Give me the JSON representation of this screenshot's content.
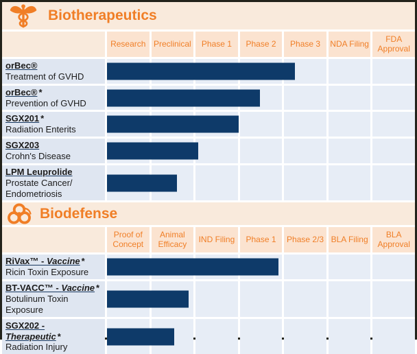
{
  "colors": {
    "accent_orange": "#F07E26",
    "bar_navy": "#0E3A69",
    "section_band_bg": "#F9EADC",
    "header_cell_bg": "#FBE3D0",
    "label_cell_bg": "#DFE6F1",
    "grid_cell_bg": "#E7EDF6",
    "border_dark": "#23231B",
    "grid_line_white": "#FFFFFF"
  },
  "sections": [
    {
      "title": "Biotherapeutics",
      "icon": "caduceus-icon",
      "columns": [
        "Research",
        "Preclinical",
        "Phase 1",
        "Phase 2",
        "Phase 3",
        "NDA Filing",
        "FDA Approval"
      ],
      "rows": [
        {
          "name_main": "orBec®",
          "name_italic": "",
          "asterisk": "",
          "indication": "Treatment of GVHD",
          "bar_pct": 61.0,
          "phase_reached": "Phase 3"
        },
        {
          "name_main": "orBec®",
          "name_italic": "",
          "asterisk": "*",
          "indication": "Prevention of GVHD",
          "bar_pct": 49.7,
          "phase_reached": "Phase 2"
        },
        {
          "name_main": "SGX201",
          "name_italic": "",
          "asterisk": "*",
          "indication": "Radiation Enterits",
          "bar_pct": 42.8,
          "phase_reached": "Phase 1"
        },
        {
          "name_main": "SGX203",
          "name_italic": "",
          "asterisk": "",
          "indication": "Crohn's Disease",
          "bar_pct": 29.6,
          "phase_reached": "Preclinical"
        },
        {
          "name_main": "LPM Leuprolide",
          "name_italic": "",
          "asterisk": "",
          "indication": "Prostate Cancer/ Endometriosis",
          "bar_pct": 22.7,
          "phase_reached": "Preclinical"
        }
      ]
    },
    {
      "title": "Biodefense",
      "icon": "biohazard-icon",
      "columns": [
        "Proof of Concept",
        "Animal Efficacy",
        "IND Filing",
        "Phase 1",
        "Phase 2/3",
        "BLA Filing",
        "BLA Approval"
      ],
      "rows": [
        {
          "name_main": "RiVax™ - ",
          "name_italic": "Vaccine",
          "asterisk": "*",
          "indication": "Ricin Toxin Exposure",
          "bar_pct": 55.7,
          "phase_reached": "Phase 1"
        },
        {
          "name_main": "BT-VACC™ - ",
          "name_italic": "Vaccine",
          "asterisk": "*",
          "indication": "Botulinum Toxin Exposure",
          "bar_pct": 26.5,
          "phase_reached": "Animal Efficacy"
        },
        {
          "name_main": "SGX202 - ",
          "name_italic": "Therapeutic",
          "asterisk": "*",
          "indication": "Radiation Injury",
          "bar_pct": 21.8,
          "phase_reached": "Animal Efficacy"
        }
      ]
    }
  ],
  "chart_data": [
    {
      "type": "bar",
      "orientation": "horizontal",
      "title": "Biotherapeutics",
      "stage_columns": [
        "Research",
        "Preclinical",
        "Phase 1",
        "Phase 2",
        "Phase 3",
        "NDA Filing",
        "FDA Approval"
      ],
      "categories": [
        "orBec® — Treatment of GVHD",
        "orBec®* — Prevention of GVHD",
        "SGX201* — Radiation Enterits",
        "SGX203 — Crohn's Disease",
        "LPM Leuprolide — Prostate Cancer/Endometriosis"
      ],
      "values_stage_units": [
        4.25,
        3.43,
        2.92,
        1.95,
        1.52
      ],
      "values_pct_of_track": [
        61.0,
        49.7,
        42.8,
        29.6,
        22.7
      ],
      "xlim_stages": [
        0,
        7
      ],
      "bar_color": "#0E3A69",
      "grid": true,
      "note": "Gantt-style pipeline chart; every bar starts at Research and extends to the development stage reached"
    },
    {
      "type": "bar",
      "orientation": "horizontal",
      "title": "Biodefense",
      "stage_columns": [
        "Proof of Concept",
        "Animal Efficacy",
        "IND Filing",
        "Phase 1",
        "Phase 2/3",
        "BLA Filing",
        "BLA Approval"
      ],
      "categories": [
        "RiVax™ - Vaccine* — Ricin Toxin Exposure",
        "BT-VACC™ - Vaccine* — Botulinum Toxin Exposure",
        "SGX202 - Therapeutic* — Radiation Injury"
      ],
      "values_stage_units": [
        3.85,
        1.75,
        1.47
      ],
      "values_pct_of_track": [
        55.7,
        26.5,
        21.8
      ],
      "xlim_stages": [
        0,
        7
      ],
      "bar_color": "#0E3A69",
      "grid": true,
      "note": "Gantt-style pipeline chart; every bar starts at Proof of Concept and extends to the development stage reached"
    }
  ]
}
